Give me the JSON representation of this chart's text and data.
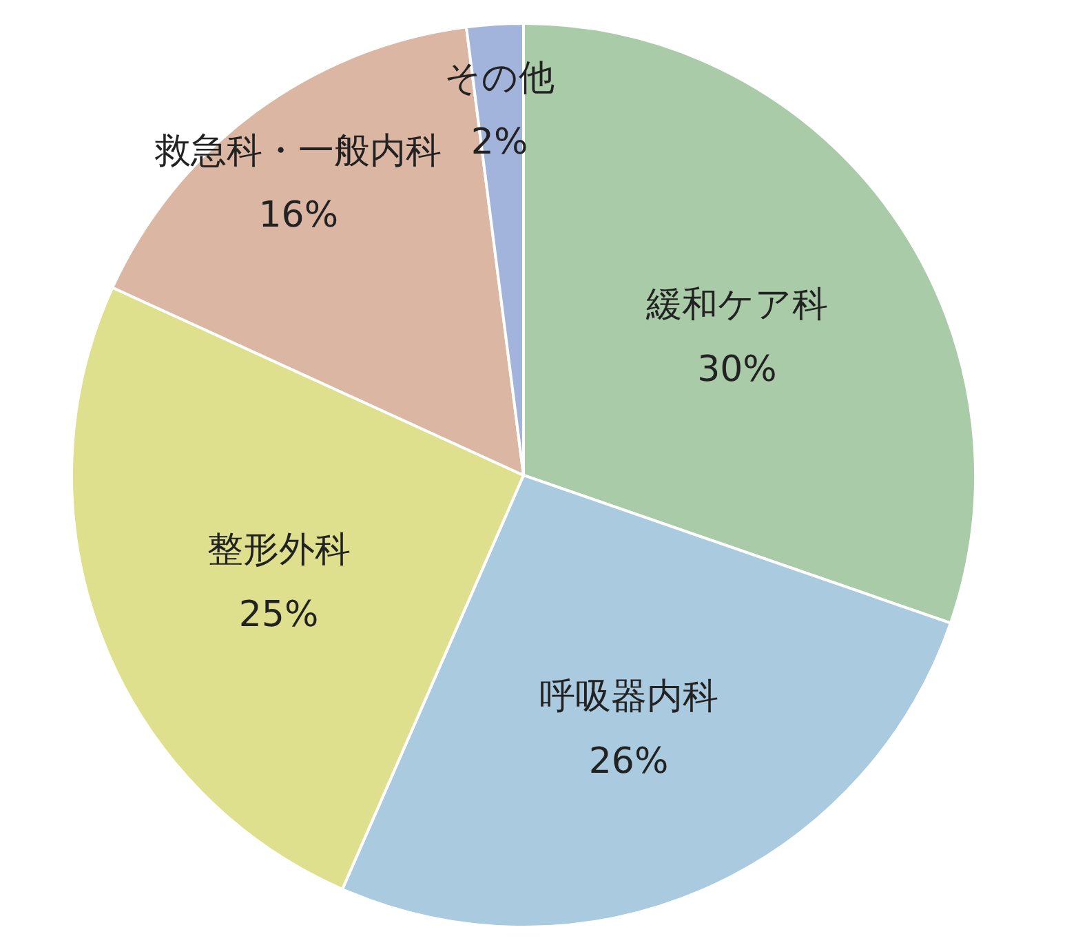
{
  "chart_data": {
    "type": "pie",
    "categories": [
      "緩和ケア科",
      "呼吸器内科",
      "整形外科",
      "救急科・一般内科",
      "その他"
    ],
    "values": [
      30,
      26,
      25,
      16,
      2
    ],
    "value_labels": [
      "30%",
      "26%",
      "25%",
      "16%",
      "2%"
    ],
    "colors": [
      "#a9cba8",
      "#a9cadf",
      "#dfe08e",
      "#dbb6a2",
      "#a3b4dc"
    ]
  }
}
